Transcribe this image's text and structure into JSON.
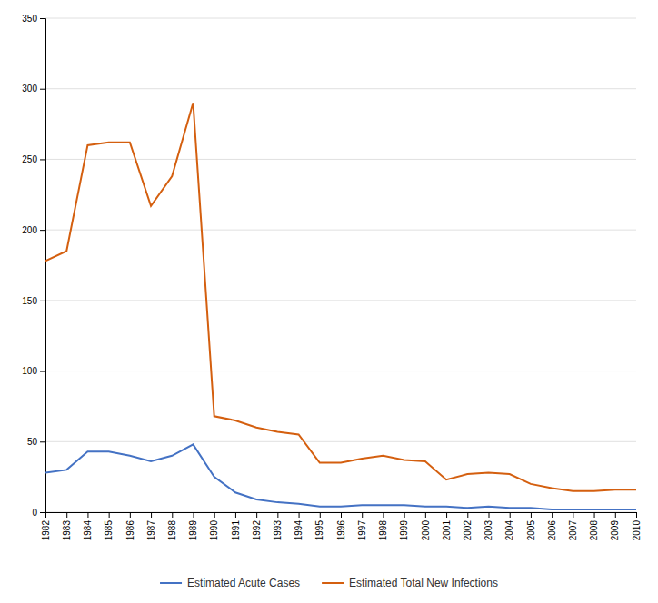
{
  "chart_data": {
    "type": "line",
    "x": [
      1982,
      1983,
      1984,
      1985,
      1986,
      1987,
      1988,
      1989,
      1990,
      1991,
      1992,
      1993,
      1994,
      1995,
      1996,
      1997,
      1998,
      1999,
      2000,
      2001,
      2002,
      2003,
      2004,
      2005,
      2006,
      2007,
      2008,
      2009,
      2010
    ],
    "series": [
      {
        "name": "Estimated Acute Cases",
        "color": "#4472c4",
        "values": [
          28,
          30,
          43,
          43,
          40,
          36,
          40,
          48,
          25,
          14,
          9,
          7,
          6,
          4,
          4,
          5,
          5,
          5,
          4,
          4,
          3,
          4,
          3,
          3,
          2,
          2,
          2,
          2,
          2
        ]
      },
      {
        "name": "Estimated Total New Infections",
        "color": "#d45f0f",
        "values": [
          178,
          185,
          260,
          262,
          262,
          217,
          238,
          290,
          68,
          65,
          60,
          57,
          55,
          35,
          35,
          38,
          40,
          37,
          36,
          23,
          27,
          28,
          27,
          20,
          17,
          15,
          15,
          16,
          16
        ]
      }
    ],
    "xlim": [
      1982,
      2010
    ],
    "xticks": [
      1982,
      1983,
      1984,
      1985,
      1986,
      1987,
      1988,
      1989,
      1990,
      1991,
      1992,
      1993,
      1994,
      1995,
      1996,
      1997,
      1998,
      1999,
      2000,
      2001,
      2002,
      2003,
      2004,
      2005,
      2006,
      2007,
      2008,
      2009,
      2010
    ],
    "ylim": [
      0,
      350
    ],
    "yticks": [
      0,
      50,
      100,
      150,
      200,
      250,
      300,
      350
    ],
    "grid": true,
    "legend": "bottom"
  }
}
